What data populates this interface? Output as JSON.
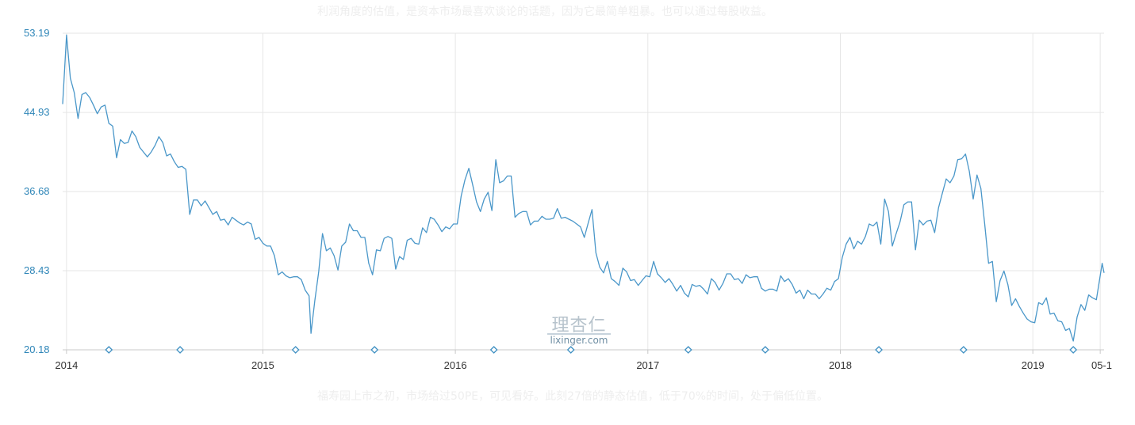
{
  "article": {
    "top_text": "利润角度的估值，是资本市场最喜欢谈论的话题，因为它最简单粗暴。也可以通过每股收益。",
    "bottom_text": "福寿园上市之初，市场给过50PE，可见看好。此刻27倍的静态估值，低于70%的时间，处于偏低位置。"
  },
  "watermark": {
    "cn": "理杏仁",
    "en": "lixinger.com"
  },
  "colors": {
    "line": "#4a97c9",
    "axis_label": "#2f86b8",
    "grid": "#e6e6e6",
    "marker": "#3d8fc2"
  },
  "chart_data": {
    "type": "line",
    "title": "",
    "xlabel": "",
    "ylabel": "",
    "y_ticks": [
      "20.18",
      "28.43",
      "36.68",
      "44.93",
      "53.19"
    ],
    "ylim": [
      20.18,
      53.19
    ],
    "x_ticks": [
      {
        "label": "2014",
        "t": 2013.98
      },
      {
        "label": "2015",
        "t": 2015.0
      },
      {
        "label": "2016",
        "t": 2016.0
      },
      {
        "label": "2017",
        "t": 2017.0
      },
      {
        "label": "2018",
        "t": 2018.0
      },
      {
        "label": "2019",
        "t": 2019.0
      },
      {
        "label": "05-1",
        "t": 2019.35
      }
    ],
    "xlim": [
      2013.96,
      2019.37
    ],
    "grid": true,
    "legend": "none",
    "event_markers": [
      2014.2,
      2014.57,
      2015.17,
      2015.58,
      2016.2,
      2016.6,
      2017.21,
      2017.61,
      2018.2,
      2018.64,
      2019.21
    ],
    "series": [
      {
        "values": [
          [
            2013.96,
            45.8
          ],
          [
            2013.98,
            53.0
          ],
          [
            2014.0,
            48.5
          ],
          [
            2014.02,
            47.0
          ],
          [
            2014.04,
            44.3
          ],
          [
            2014.06,
            46.8
          ],
          [
            2014.08,
            47.0
          ],
          [
            2014.1,
            46.5
          ],
          [
            2014.12,
            45.7
          ],
          [
            2014.14,
            44.8
          ],
          [
            2014.16,
            45.5
          ],
          [
            2014.18,
            45.7
          ],
          [
            2014.2,
            43.8
          ],
          [
            2014.22,
            43.5
          ],
          [
            2014.24,
            40.2
          ],
          [
            2014.26,
            42.1
          ],
          [
            2014.28,
            41.7
          ],
          [
            2014.3,
            41.8
          ],
          [
            2014.32,
            43.0
          ],
          [
            2014.34,
            42.4
          ],
          [
            2014.36,
            41.3
          ],
          [
            2014.38,
            40.8
          ],
          [
            2014.4,
            40.3
          ],
          [
            2014.42,
            40.8
          ],
          [
            2014.44,
            41.5
          ],
          [
            2014.46,
            42.4
          ],
          [
            2014.48,
            41.8
          ],
          [
            2014.5,
            40.4
          ],
          [
            2014.52,
            40.6
          ],
          [
            2014.54,
            39.8
          ],
          [
            2014.56,
            39.2
          ],
          [
            2014.58,
            39.3
          ],
          [
            2014.6,
            39.0
          ],
          [
            2014.62,
            34.3
          ],
          [
            2014.64,
            35.8
          ],
          [
            2014.66,
            35.8
          ],
          [
            2014.68,
            35.2
          ],
          [
            2014.7,
            35.7
          ],
          [
            2014.72,
            35.0
          ],
          [
            2014.74,
            34.3
          ],
          [
            2014.76,
            34.6
          ],
          [
            2014.78,
            33.7
          ],
          [
            2014.8,
            33.8
          ],
          [
            2014.82,
            33.2
          ],
          [
            2014.84,
            34.0
          ],
          [
            2014.86,
            33.7
          ],
          [
            2014.88,
            33.4
          ],
          [
            2014.9,
            33.2
          ],
          [
            2014.92,
            33.5
          ],
          [
            2014.94,
            33.3
          ],
          [
            2014.96,
            31.7
          ],
          [
            2014.98,
            31.9
          ],
          [
            2015.0,
            31.3
          ],
          [
            2015.02,
            31.0
          ],
          [
            2015.04,
            31.0
          ],
          [
            2015.06,
            30.0
          ],
          [
            2015.08,
            28.0
          ],
          [
            2015.1,
            28.3
          ],
          [
            2015.12,
            27.9
          ],
          [
            2015.14,
            27.7
          ],
          [
            2015.16,
            27.8
          ],
          [
            2015.18,
            27.8
          ],
          [
            2015.2,
            27.5
          ],
          [
            2015.22,
            26.4
          ],
          [
            2015.24,
            25.8
          ],
          [
            2015.25,
            21.9
          ],
          [
            2015.27,
            25.3
          ],
          [
            2015.29,
            28.3
          ],
          [
            2015.31,
            32.3
          ],
          [
            2015.33,
            30.5
          ],
          [
            2015.35,
            30.8
          ],
          [
            2015.37,
            30.0
          ],
          [
            2015.39,
            28.5
          ],
          [
            2015.41,
            31.0
          ],
          [
            2015.43,
            31.4
          ],
          [
            2015.45,
            33.3
          ],
          [
            2015.47,
            32.6
          ],
          [
            2015.49,
            32.6
          ],
          [
            2015.51,
            31.9
          ],
          [
            2015.53,
            31.9
          ],
          [
            2015.55,
            29.2
          ],
          [
            2015.57,
            28.0
          ],
          [
            2015.59,
            30.6
          ],
          [
            2015.61,
            30.5
          ],
          [
            2015.63,
            31.8
          ],
          [
            2015.65,
            32.0
          ],
          [
            2015.67,
            31.8
          ],
          [
            2015.69,
            28.6
          ],
          [
            2015.71,
            29.9
          ],
          [
            2015.73,
            29.6
          ],
          [
            2015.75,
            31.6
          ],
          [
            2015.77,
            31.8
          ],
          [
            2015.79,
            31.3
          ],
          [
            2015.81,
            31.2
          ],
          [
            2015.83,
            32.9
          ],
          [
            2015.85,
            32.4
          ],
          [
            2015.87,
            34.0
          ],
          [
            2015.89,
            33.8
          ],
          [
            2015.91,
            33.2
          ],
          [
            2015.93,
            32.5
          ],
          [
            2015.95,
            33.0
          ],
          [
            2015.97,
            32.8
          ],
          [
            2015.99,
            33.3
          ],
          [
            2016.01,
            33.3
          ],
          [
            2016.03,
            36.2
          ],
          [
            2016.05,
            37.9
          ],
          [
            2016.07,
            39.1
          ],
          [
            2016.09,
            37.4
          ],
          [
            2016.11,
            35.6
          ],
          [
            2016.13,
            34.6
          ],
          [
            2016.15,
            35.9
          ],
          [
            2016.17,
            36.6
          ],
          [
            2016.19,
            34.7
          ],
          [
            2016.21,
            40.0
          ],
          [
            2016.23,
            37.6
          ],
          [
            2016.25,
            37.8
          ],
          [
            2016.27,
            38.3
          ],
          [
            2016.29,
            38.3
          ],
          [
            2016.31,
            34.0
          ],
          [
            2016.33,
            34.4
          ],
          [
            2016.35,
            34.6
          ],
          [
            2016.37,
            34.6
          ],
          [
            2016.39,
            33.2
          ],
          [
            2016.41,
            33.6
          ],
          [
            2016.43,
            33.6
          ],
          [
            2016.45,
            34.1
          ],
          [
            2016.47,
            33.8
          ],
          [
            2016.49,
            33.8
          ],
          [
            2016.51,
            33.9
          ],
          [
            2016.53,
            34.9
          ],
          [
            2016.55,
            33.9
          ],
          [
            2016.57,
            34.0
          ],
          [
            2016.59,
            33.8
          ],
          [
            2016.61,
            33.6
          ],
          [
            2016.63,
            33.3
          ],
          [
            2016.65,
            33.0
          ],
          [
            2016.67,
            31.9
          ],
          [
            2016.69,
            33.4
          ],
          [
            2016.71,
            34.8
          ],
          [
            2016.73,
            30.3
          ],
          [
            2016.75,
            28.8
          ],
          [
            2016.77,
            28.2
          ],
          [
            2016.79,
            29.4
          ],
          [
            2016.81,
            27.6
          ],
          [
            2016.83,
            27.3
          ],
          [
            2016.85,
            26.9
          ],
          [
            2016.87,
            28.7
          ],
          [
            2016.89,
            28.3
          ],
          [
            2016.91,
            27.4
          ],
          [
            2016.93,
            27.5
          ],
          [
            2016.95,
            26.9
          ],
          [
            2016.97,
            27.4
          ],
          [
            2016.99,
            27.9
          ],
          [
            2017.01,
            27.8
          ],
          [
            2017.03,
            29.4
          ],
          [
            2017.05,
            28.1
          ],
          [
            2017.07,
            27.7
          ],
          [
            2017.09,
            27.2
          ],
          [
            2017.11,
            27.6
          ],
          [
            2017.13,
            27.0
          ],
          [
            2017.15,
            26.3
          ],
          [
            2017.17,
            26.9
          ],
          [
            2017.19,
            26.1
          ],
          [
            2017.21,
            25.7
          ],
          [
            2017.23,
            27.0
          ],
          [
            2017.25,
            26.8
          ],
          [
            2017.27,
            26.9
          ],
          [
            2017.29,
            26.5
          ],
          [
            2017.31,
            26.0
          ],
          [
            2017.33,
            27.6
          ],
          [
            2017.35,
            27.2
          ],
          [
            2017.37,
            26.4
          ],
          [
            2017.39,
            27.1
          ],
          [
            2017.41,
            28.1
          ],
          [
            2017.43,
            28.1
          ],
          [
            2017.45,
            27.5
          ],
          [
            2017.47,
            27.6
          ],
          [
            2017.49,
            27.1
          ],
          [
            2017.51,
            28.0
          ],
          [
            2017.53,
            27.7
          ],
          [
            2017.55,
            27.8
          ],
          [
            2017.57,
            27.8
          ],
          [
            2017.59,
            26.6
          ],
          [
            2017.61,
            26.3
          ],
          [
            2017.63,
            26.5
          ],
          [
            2017.65,
            26.5
          ],
          [
            2017.67,
            26.3
          ],
          [
            2017.69,
            27.9
          ],
          [
            2017.71,
            27.3
          ],
          [
            2017.73,
            27.6
          ],
          [
            2017.75,
            27.0
          ],
          [
            2017.77,
            26.1
          ],
          [
            2017.79,
            26.4
          ],
          [
            2017.81,
            25.5
          ],
          [
            2017.83,
            26.4
          ],
          [
            2017.85,
            26.0
          ],
          [
            2017.87,
            26.0
          ],
          [
            2017.89,
            25.5
          ],
          [
            2017.91,
            26.0
          ],
          [
            2017.93,
            26.6
          ],
          [
            2017.95,
            26.4
          ],
          [
            2017.97,
            27.3
          ],
          [
            2017.99,
            27.6
          ],
          [
            2018.01,
            29.8
          ],
          [
            2018.03,
            31.2
          ],
          [
            2018.05,
            31.9
          ],
          [
            2018.07,
            30.7
          ],
          [
            2018.09,
            31.5
          ],
          [
            2018.11,
            31.2
          ],
          [
            2018.13,
            32.0
          ],
          [
            2018.15,
            33.3
          ],
          [
            2018.17,
            33.1
          ],
          [
            2018.19,
            33.5
          ],
          [
            2018.21,
            31.2
          ],
          [
            2018.23,
            35.9
          ],
          [
            2018.25,
            34.6
          ],
          [
            2018.27,
            31.0
          ],
          [
            2018.29,
            32.3
          ],
          [
            2018.31,
            33.5
          ],
          [
            2018.33,
            35.3
          ],
          [
            2018.35,
            35.6
          ],
          [
            2018.37,
            35.6
          ],
          [
            2018.39,
            30.6
          ],
          [
            2018.41,
            33.7
          ],
          [
            2018.43,
            33.2
          ],
          [
            2018.45,
            33.6
          ],
          [
            2018.47,
            33.7
          ],
          [
            2018.49,
            32.4
          ],
          [
            2018.51,
            35.0
          ],
          [
            2018.53,
            36.5
          ],
          [
            2018.55,
            38.0
          ],
          [
            2018.57,
            37.6
          ],
          [
            2018.59,
            38.3
          ],
          [
            2018.61,
            40.0
          ],
          [
            2018.63,
            40.1
          ],
          [
            2018.65,
            40.6
          ],
          [
            2018.67,
            38.8
          ],
          [
            2018.69,
            35.9
          ],
          [
            2018.71,
            38.4
          ],
          [
            2018.73,
            37.0
          ],
          [
            2018.75,
            33.3
          ],
          [
            2018.77,
            29.2
          ],
          [
            2018.79,
            29.4
          ],
          [
            2018.81,
            25.2
          ],
          [
            2018.83,
            27.4
          ],
          [
            2018.85,
            28.4
          ],
          [
            2018.87,
            27.0
          ],
          [
            2018.89,
            24.8
          ],
          [
            2018.91,
            25.5
          ],
          [
            2018.93,
            24.7
          ],
          [
            2018.95,
            24.0
          ],
          [
            2018.97,
            23.4
          ],
          [
            2018.99,
            23.1
          ],
          [
            2019.01,
            23.0
          ],
          [
            2019.03,
            25.1
          ],
          [
            2019.05,
            24.9
          ],
          [
            2019.07,
            25.6
          ],
          [
            2019.09,
            23.9
          ],
          [
            2019.11,
            24.0
          ],
          [
            2019.13,
            23.2
          ],
          [
            2019.15,
            23.1
          ],
          [
            2019.17,
            22.2
          ],
          [
            2019.19,
            22.4
          ],
          [
            2019.21,
            21.1
          ],
          [
            2019.23,
            23.6
          ],
          [
            2019.25,
            24.9
          ],
          [
            2019.27,
            24.3
          ],
          [
            2019.29,
            25.9
          ],
          [
            2019.31,
            25.6
          ],
          [
            2019.33,
            25.4
          ],
          [
            2019.35,
            27.9
          ],
          [
            2019.36,
            29.2
          ],
          [
            2019.37,
            28.2
          ]
        ]
      }
    ]
  }
}
